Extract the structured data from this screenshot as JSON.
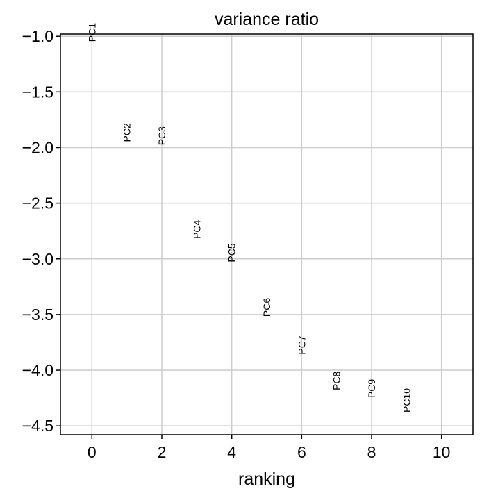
{
  "chart_data": {
    "type": "scatter",
    "title": "variance ratio",
    "xlabel": "ranking",
    "ylabel": "",
    "xlim": [
      -0.9,
      10.9
    ],
    "ylim": [
      -4.58,
      -0.98
    ],
    "grid": true,
    "x_ticks": [
      0,
      2,
      4,
      6,
      8,
      10
    ],
    "x_tick_labels": [
      "0",
      "2",
      "4",
      "6",
      "8",
      "10"
    ],
    "y_ticks": [
      -1.0,
      -1.5,
      -2.0,
      -2.5,
      -3.0,
      -3.5,
      -4.0,
      -4.5
    ],
    "y_tick_labels": [
      "−1.0",
      "−1.5",
      "−2.0",
      "−2.5",
      "−3.0",
      "−3.5",
      "−4.0",
      "−4.5"
    ],
    "points": [
      {
        "label": "PC1",
        "x": 0,
        "y": -1.05
      },
      {
        "label": "PC2",
        "x": 1,
        "y": -1.95
      },
      {
        "label": "PC3",
        "x": 2,
        "y": -1.98
      },
      {
        "label": "PC4",
        "x": 3,
        "y": -2.82
      },
      {
        "label": "PC5",
        "x": 4,
        "y": -3.03
      },
      {
        "label": "PC6",
        "x": 5,
        "y": -3.52
      },
      {
        "label": "PC7",
        "x": 6,
        "y": -3.86
      },
      {
        "label": "PC8",
        "x": 7,
        "y": -4.18
      },
      {
        "label": "PC9",
        "x": 8,
        "y": -4.25
      },
      {
        "label": "PC10",
        "x": 9,
        "y": -4.38
      }
    ]
  }
}
